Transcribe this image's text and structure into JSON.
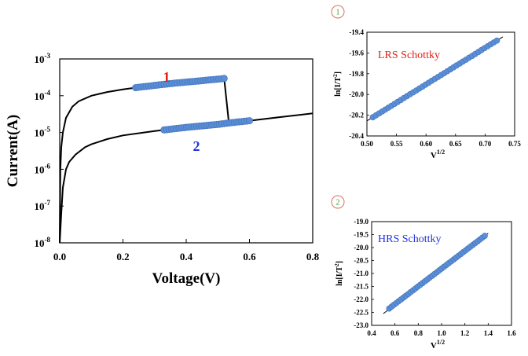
{
  "colors": {
    "curve": "#000000",
    "marker": "#5b8ed6",
    "marker_edge": "#3f72b8",
    "label_red": "#e0201a",
    "label_blue": "#2233dd",
    "circle_red": "#d9705a",
    "circle_num": "#3a9a3a",
    "fit_line": "#000000"
  },
  "chart_data": [
    {
      "id": "iv",
      "type": "line",
      "xlabel": "Voltage(V)",
      "ylabel": "Current(A)",
      "xlim": [
        0.0,
        0.8
      ],
      "ylim_log10": [
        -8,
        -3
      ],
      "yscale": "log",
      "xticks": [
        "0.0",
        "0.2",
        "0.4",
        "0.6",
        "0.8"
      ],
      "yticks": [
        {
          "base": "10",
          "exp": "-3"
        },
        {
          "base": "10",
          "exp": "-4"
        },
        {
          "base": "10",
          "exp": "-5"
        },
        {
          "base": "10",
          "exp": "-6"
        },
        {
          "base": "10",
          "exp": "-7"
        },
        {
          "base": "10",
          "exp": "-8"
        }
      ],
      "annotations": [
        {
          "text": "1",
          "color": "label_red"
        },
        {
          "text": "2",
          "color": "label_blue"
        }
      ],
      "series": [
        {
          "curve": "upper",
          "x": [
            0.0,
            0.002,
            0.005,
            0.01,
            0.02,
            0.04,
            0.06,
            0.1,
            0.15,
            0.2,
            0.25,
            0.3,
            0.35,
            0.4,
            0.45,
            0.5,
            0.52
          ],
          "y_log10": [
            -8.0,
            -6.0,
            -5.4,
            -5.0,
            -4.6,
            -4.3,
            -4.15,
            -4.0,
            -3.9,
            -3.83,
            -3.77,
            -3.72,
            -3.67,
            -3.63,
            -3.59,
            -3.55,
            -3.53
          ]
        },
        {
          "curve": "jump",
          "x": [
            0.52,
            0.535
          ],
          "y_log10": [
            -3.53,
            -4.74
          ]
        },
        {
          "curve": "lower",
          "x": [
            0.0,
            0.005,
            0.01,
            0.02,
            0.03,
            0.05,
            0.08,
            0.1,
            0.15,
            0.2,
            0.3,
            0.4,
            0.5,
            0.535,
            0.6,
            0.7,
            0.8
          ],
          "y_log10": [
            -8.0,
            -7.2,
            -6.5,
            -6.0,
            -5.8,
            -5.6,
            -5.4,
            -5.32,
            -5.18,
            -5.08,
            -4.96,
            -4.86,
            -4.78,
            -4.74,
            -4.68,
            -4.58,
            -4.48
          ]
        }
      ],
      "marked_segments": [
        {
          "x": [
            0.24,
            0.52
          ],
          "curve": "upper"
        },
        {
          "x": [
            0.33,
            0.6
          ],
          "curve": "lower"
        }
      ]
    },
    {
      "id": "lrs",
      "type": "scatter",
      "title": "LRS Schottky",
      "badge": "1",
      "xlabel_base": "V",
      "xlabel_sup": "1/2",
      "ylabel_main": "ln[I/T",
      "ylabel_sup": "2",
      "ylabel_end": "]",
      "xlim": [
        0.5,
        0.75
      ],
      "ylim": [
        -20.4,
        -19.4
      ],
      "xticks": [
        "0.50",
        "0.55",
        "0.60",
        "0.65",
        "0.70",
        "0.75"
      ],
      "yticks": [
        "-19.4",
        "-19.6",
        "-19.8",
        "-20.0",
        "-20.2",
        "-20.4"
      ],
      "x": [
        0.51,
        0.72
      ],
      "y": [
        -20.22,
        -19.48
      ],
      "fit": {
        "x": [
          0.5,
          0.73
        ],
        "y": [
          -20.255,
          -19.445
        ]
      }
    },
    {
      "id": "hrs",
      "type": "scatter",
      "title": "HRS Schottky",
      "badge": "2",
      "xlabel_base": "V",
      "xlabel_sup": "1/2",
      "ylabel_main": "ln[I/T",
      "ylabel_sup": "2",
      "ylabel_end": "]",
      "xlim": [
        0.4,
        1.6
      ],
      "ylim": [
        -23.0,
        -19.0
      ],
      "xticks": [
        "0.4",
        "0.6",
        "0.8",
        "1.0",
        "1.2",
        "1.4",
        "1.6"
      ],
      "yticks": [
        "-19.0",
        "-19.5",
        "-20.0",
        "-20.5",
        "-21.0",
        "-21.5",
        "-22.0",
        "-22.5",
        "-23.0"
      ],
      "x": [
        0.55,
        1.37
      ],
      "y": [
        -22.35,
        -19.55
      ],
      "fit": {
        "x": [
          0.5,
          1.4
        ],
        "y": [
          -22.55,
          -19.45
        ]
      }
    }
  ]
}
